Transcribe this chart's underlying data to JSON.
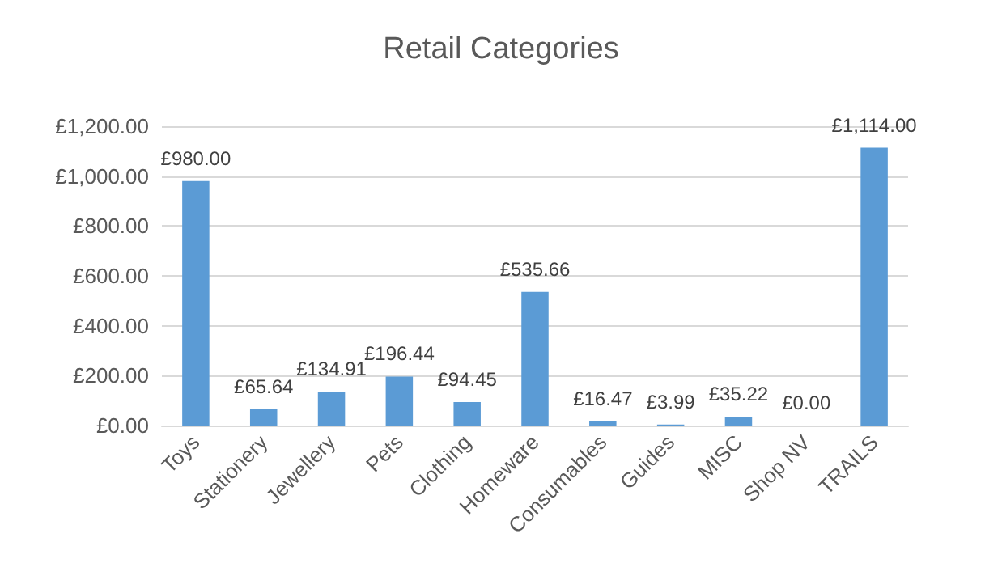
{
  "chart_data": {
    "type": "bar",
    "title": "Retail Categories",
    "categories": [
      "Toys",
      "Stationery",
      "Jewellery",
      "Pets",
      "Clothing",
      "Homeware",
      "Consumables",
      "Guides",
      "MISC",
      "Shop NV",
      "TRAILS"
    ],
    "values": [
      980,
      65.64,
      134.91,
      196.44,
      94.45,
      535.66,
      16.47,
      3.99,
      35.22,
      0,
      1114
    ],
    "value_labels": [
      "£980.00",
      "£65.64",
      "£134.91",
      "£196.44",
      "£94.45",
      "£535.66",
      "£16.47",
      "£3.99",
      "£35.22",
      "£0.00",
      "£1,114.00"
    ],
    "color": "#5b9bd5",
    "ylim": [
      0,
      1200
    ],
    "yticks": [
      {
        "value": 0,
        "label": "£0.00"
      },
      {
        "value": 200,
        "label": "£200.00"
      },
      {
        "value": 400,
        "label": "£400.00"
      },
      {
        "value": 600,
        "label": "£600.00"
      },
      {
        "value": 800,
        "label": "£800.00"
      },
      {
        "value": 1000,
        "label": "£1,000.00"
      },
      {
        "value": 1200,
        "label": "£1,200.00"
      }
    ],
    "grid": "y"
  }
}
